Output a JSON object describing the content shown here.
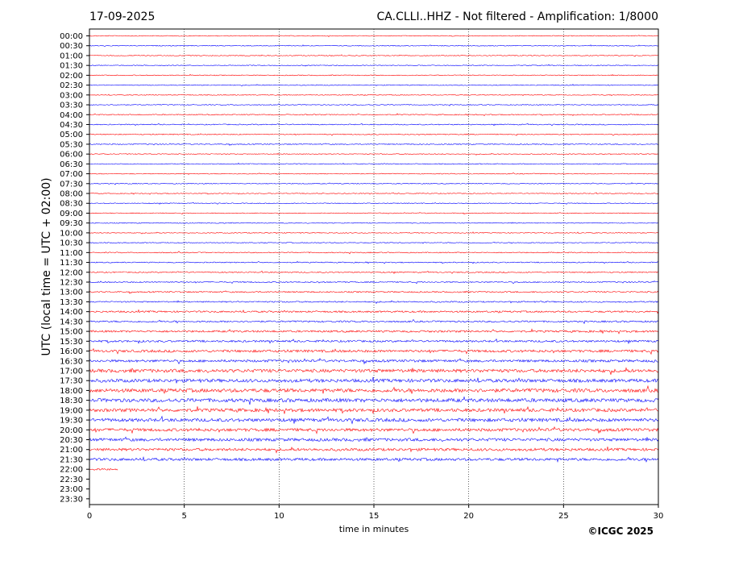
{
  "header": {
    "date": "17-09-2025",
    "station_title": "CA.CLLI..HHZ - Not filtered - Amplification: 1/8000"
  },
  "footer": {
    "copyright": "©ICGC 2025"
  },
  "chart_data": {
    "type": "line",
    "title": "CA.CLLI..HHZ - Not filtered - Amplification: 1/8000",
    "date": "17-09-2025",
    "xlabel": "time in minutes",
    "ylabel": "UTC (local time = UTC + 02:00)",
    "xlim": [
      0,
      30
    ],
    "x_ticks": [
      0,
      5,
      10,
      15,
      20,
      25,
      30
    ],
    "grid": "vertical dotted lines at 5-minute intervals",
    "y_tick_labels": [
      "00:00",
      "00:30",
      "01:00",
      "01:30",
      "02:00",
      "02:30",
      "03:00",
      "03:30",
      "04:00",
      "04:30",
      "05:00",
      "05:30",
      "06:00",
      "06:30",
      "07:00",
      "07:30",
      "08:00",
      "08:30",
      "09:00",
      "09:30",
      "10:00",
      "10:30",
      "11:00",
      "11:30",
      "12:00",
      "12:30",
      "13:00",
      "13:30",
      "14:00",
      "14:30",
      "15:00",
      "15:30",
      "16:00",
      "16:30",
      "17:00",
      "17:30",
      "18:00",
      "18:30",
      "19:00",
      "19:30",
      "20:00",
      "20:30",
      "21:00",
      "21:30",
      "22:00",
      "22:30",
      "23:00",
      "23:30"
    ],
    "trace_colors": [
      "#ff0000",
      "#0000ff"
    ],
    "traces_recorded": 45,
    "last_trace_end_minutes": 1.5,
    "trace_amplitude_by_hour": [
      0.5,
      0.5,
      0.5,
      0.5,
      0.6,
      0.6,
      0.5,
      0.5,
      0.5,
      0.5,
      0.5,
      0.6,
      0.7,
      0.8,
      1.0,
      1.2,
      1.5,
      2.0,
      2.2,
      2.0,
      1.8,
      1.6,
      1.2,
      1.0
    ]
  }
}
